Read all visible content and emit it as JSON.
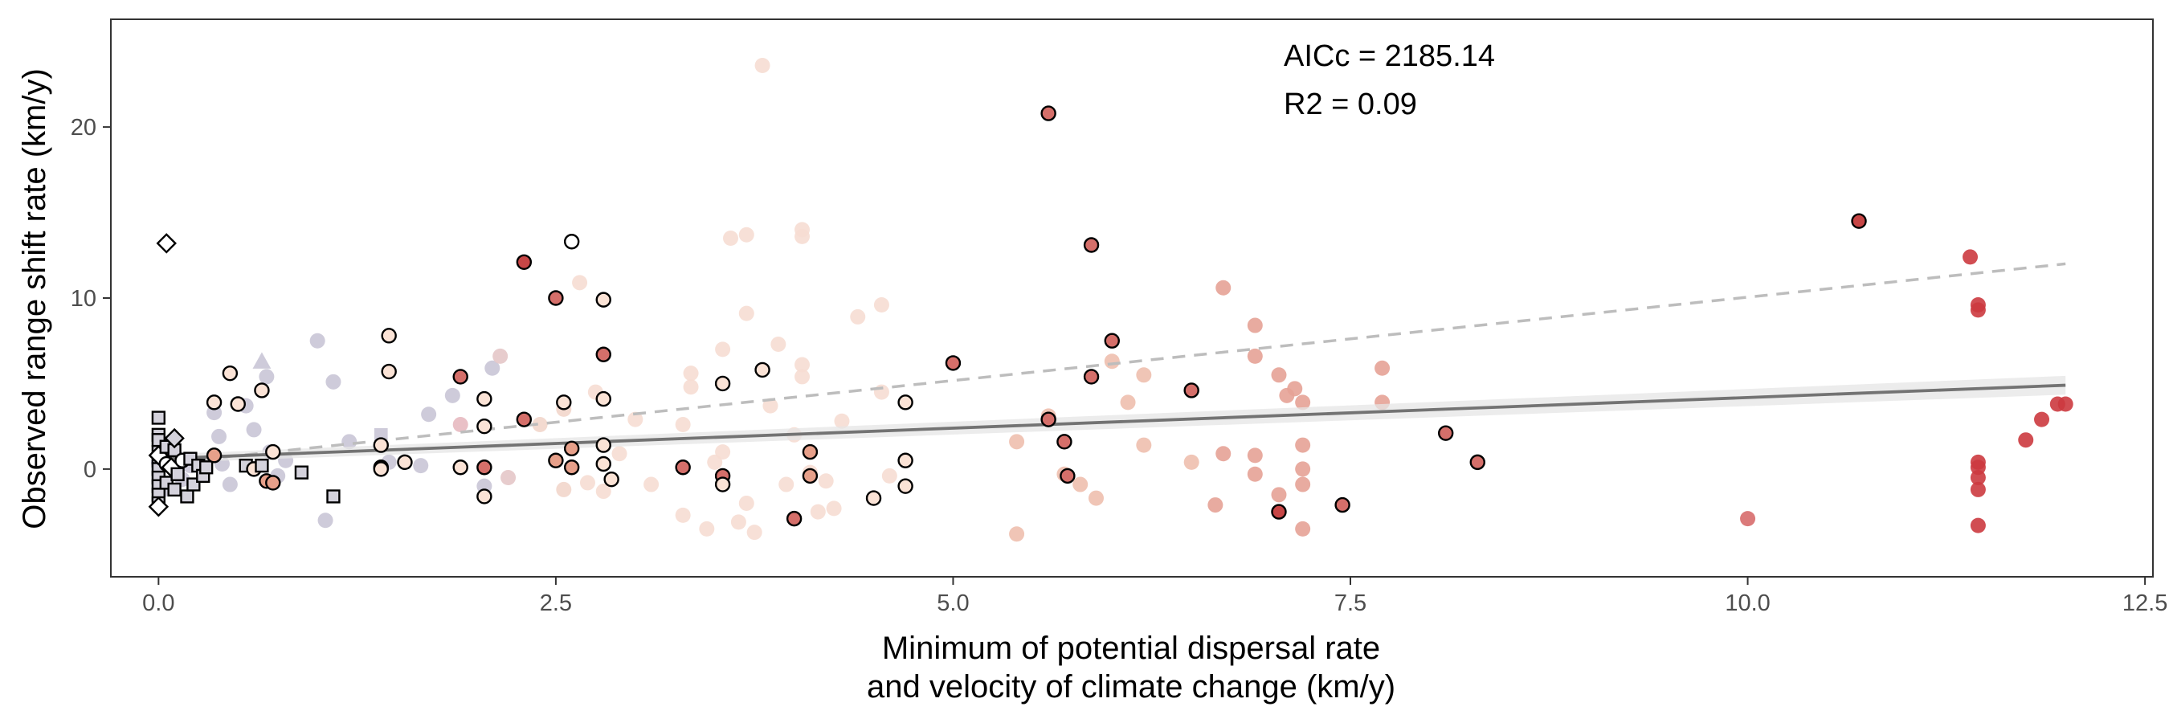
{
  "chart_data": {
    "type": "scatter",
    "xlabel_lines": [
      "Minimum of potential dispersal rate",
      "and velocity of climate change (km/y)"
    ],
    "ylabel": "Observed range shift rate (km/y)",
    "xlim": [
      -0.3,
      12.55
    ],
    "ylim": [
      -6.3,
      26.3
    ],
    "x_ticks": [
      0,
      2.5,
      5,
      7.5,
      10,
      12.5
    ],
    "x_tick_labels": [
      "0.0",
      "2.5",
      "5.0",
      "7.5",
      "10.0",
      "12.5"
    ],
    "y_ticks": [
      0,
      10,
      20
    ],
    "y_tick_labels": [
      "0",
      "10",
      "20"
    ],
    "grid": false,
    "annotations": {
      "aicc": "AICc = 2185.14",
      "r2": "R2 = 0.09"
    },
    "colors": {
      "outline": "#000000",
      "faded_marker": "#c9c5d6",
      "solid_fit": "#737373",
      "dashed_fit": "#bdbdbd",
      "ribbon": "#e6e6e6"
    },
    "fits": [
      {
        "style": "solid",
        "x": [
          0,
          12
        ],
        "y": [
          0.6,
          4.9
        ],
        "ci_halfwidth": [
          0.25,
          0.55
        ]
      },
      {
        "style": "dashed",
        "x": [
          0,
          12
        ],
        "y": [
          0.3,
          12.0
        ]
      }
    ],
    "faded_points": [
      [
        0.0,
        0.4,
        "#c9c5d6",
        "circle"
      ],
      [
        0.03,
        -1.2,
        "#c9c5d6",
        "circle"
      ],
      [
        0.05,
        1.5,
        "#c9c5d6",
        "circle"
      ],
      [
        0.1,
        0.9,
        "#c9c5d6",
        "circle"
      ],
      [
        0.15,
        -0.6,
        "#c9c5d6",
        "circle"
      ],
      [
        0.2,
        0.2,
        "#c9c5d6",
        "circle"
      ],
      [
        0.35,
        3.3,
        "#c9c5d6",
        "circle"
      ],
      [
        0.38,
        1.9,
        "#c9c5d6",
        "circle"
      ],
      [
        0.4,
        0.3,
        "#c9c5d6",
        "circle"
      ],
      [
        0.45,
        -0.9,
        "#c9c5d6",
        "circle"
      ],
      [
        0.55,
        3.7,
        "#c9c5d6",
        "circle"
      ],
      [
        0.6,
        2.3,
        "#c9c5d6",
        "circle"
      ],
      [
        0.65,
        6.3,
        "#c9c5d6",
        "triangle"
      ],
      [
        0.68,
        5.4,
        "#c9c5d6",
        "circle"
      ],
      [
        0.7,
        1.0,
        "#c9c5d6",
        "circle"
      ],
      [
        0.75,
        -0.4,
        "#c9c5d6",
        "circle"
      ],
      [
        0.8,
        0.5,
        "#c9c5d6",
        "circle"
      ],
      [
        1.0,
        7.5,
        "#c9c5d6",
        "circle"
      ],
      [
        1.05,
        -3.0,
        "#c9c5d6",
        "circle"
      ],
      [
        1.1,
        5.1,
        "#c9c5d6",
        "circle"
      ],
      [
        1.2,
        1.6,
        "#c9c5d6",
        "circle"
      ],
      [
        1.4,
        2.0,
        "#c9c5d6",
        "square"
      ],
      [
        1.45,
        0.4,
        "#c9c5d6",
        "circle"
      ],
      [
        1.65,
        0.2,
        "#c9c5d6",
        "circle"
      ],
      [
        1.7,
        3.2,
        "#c9c5d6",
        "circle"
      ],
      [
        1.85,
        4.3,
        "#c9c5d6",
        "circle"
      ],
      [
        1.9,
        2.6,
        "#e7b9c0",
        "circle"
      ],
      [
        2.05,
        -1.0,
        "#c9c5d6",
        "circle"
      ],
      [
        2.1,
        5.9,
        "#c9c5d6",
        "circle"
      ],
      [
        2.15,
        6.6,
        "#e4c7c8",
        "circle"
      ],
      [
        2.2,
        -0.5,
        "#e4c7c8",
        "circle"
      ],
      [
        2.4,
        2.6,
        "#f2d6cb",
        "circle"
      ],
      [
        2.55,
        -1.2,
        "#f2d6cb",
        "circle"
      ],
      [
        2.55,
        3.5,
        "#f2d6cb",
        "circle"
      ],
      [
        2.65,
        10.9,
        "#f6ddd3",
        "circle"
      ],
      [
        2.7,
        -0.8,
        "#f6ddd3",
        "circle"
      ],
      [
        2.75,
        4.5,
        "#f6ddd3",
        "circle"
      ],
      [
        2.8,
        -1.3,
        "#f6ddd3",
        "circle"
      ],
      [
        2.9,
        0.9,
        "#f6ddd3",
        "circle"
      ],
      [
        3.0,
        2.9,
        "#f6ddd3",
        "circle"
      ],
      [
        3.1,
        -0.9,
        "#f6ddd3",
        "circle"
      ],
      [
        3.3,
        -2.7,
        "#f6ddd3",
        "circle"
      ],
      [
        3.3,
        2.6,
        "#f6ddd3",
        "circle"
      ],
      [
        3.35,
        4.8,
        "#f6ddd3",
        "circle"
      ],
      [
        3.35,
        5.6,
        "#f6ddd3",
        "circle"
      ],
      [
        3.45,
        -3.5,
        "#f6ddd3",
        "circle"
      ],
      [
        3.5,
        0.4,
        "#f6ddd3",
        "circle"
      ],
      [
        3.55,
        7.0,
        "#f6ddd3",
        "circle"
      ],
      [
        3.55,
        1.0,
        "#f6ddd3",
        "circle"
      ],
      [
        3.6,
        13.5,
        "#f6ddd3",
        "circle"
      ],
      [
        3.65,
        -3.1,
        "#f6ddd3",
        "circle"
      ],
      [
        3.7,
        13.7,
        "#f6ddd3",
        "circle"
      ],
      [
        3.7,
        9.1,
        "#f6ddd3",
        "circle"
      ],
      [
        3.7,
        -2.0,
        "#f6ddd3",
        "circle"
      ],
      [
        3.75,
        -3.7,
        "#f6ddd3",
        "circle"
      ],
      [
        3.8,
        23.6,
        "#f6ddd3",
        "circle"
      ],
      [
        3.85,
        3.7,
        "#f6ddd3",
        "circle"
      ],
      [
        3.9,
        7.3,
        "#f6ddd3",
        "circle"
      ],
      [
        3.95,
        -0.9,
        "#f6ddd3",
        "circle"
      ],
      [
        4.0,
        2.0,
        "#f6ddd3",
        "circle"
      ],
      [
        4.05,
        13.6,
        "#f6ddd3",
        "circle"
      ],
      [
        4.05,
        14.0,
        "#f6ddd3",
        "circle"
      ],
      [
        4.05,
        6.1,
        "#f6ddd3",
        "circle"
      ],
      [
        4.05,
        5.4,
        "#f6ddd3",
        "circle"
      ],
      [
        4.1,
        -0.2,
        "#f6ddd3",
        "circle"
      ],
      [
        4.15,
        -2.5,
        "#f6ddd3",
        "circle"
      ],
      [
        4.2,
        -0.7,
        "#f6ddd3",
        "circle"
      ],
      [
        4.25,
        -2.3,
        "#f6ddd3",
        "circle"
      ],
      [
        4.3,
        2.8,
        "#f6ddd3",
        "circle"
      ],
      [
        4.4,
        8.9,
        "#f6ddd3",
        "circle"
      ],
      [
        4.55,
        9.6,
        "#f6ddd3",
        "circle"
      ],
      [
        4.55,
        4.5,
        "#f6ddd3",
        "circle"
      ],
      [
        4.6,
        -0.4,
        "#f6ddd3",
        "circle"
      ],
      [
        5.4,
        1.6,
        "#eebfae",
        "circle"
      ],
      [
        5.4,
        -3.8,
        "#eebfae",
        "circle"
      ],
      [
        5.6,
        3.1,
        "#eebfae",
        "circle"
      ],
      [
        5.7,
        -0.3,
        "#eebfae",
        "circle"
      ],
      [
        5.8,
        -0.9,
        "#eebfae",
        "circle"
      ],
      [
        5.9,
        -1.7,
        "#eebfae",
        "circle"
      ],
      [
        6.0,
        6.3,
        "#eebfae",
        "circle"
      ],
      [
        6.1,
        3.9,
        "#eebfae",
        "circle"
      ],
      [
        6.2,
        5.5,
        "#eebfae",
        "circle"
      ],
      [
        6.2,
        1.4,
        "#eebfae",
        "circle"
      ],
      [
        6.5,
        0.4,
        "#eebfae",
        "circle"
      ],
      [
        6.65,
        -2.1,
        "#e6a296",
        "circle"
      ],
      [
        6.7,
        10.6,
        "#e6a296",
        "circle"
      ],
      [
        6.7,
        0.9,
        "#e6a296",
        "circle"
      ],
      [
        6.9,
        8.4,
        "#e6a296",
        "circle"
      ],
      [
        6.9,
        6.6,
        "#e6a296",
        "circle"
      ],
      [
        6.9,
        0.8,
        "#e6a296",
        "circle"
      ],
      [
        6.9,
        -0.3,
        "#e6a296",
        "circle"
      ],
      [
        7.05,
        5.5,
        "#e6a296",
        "circle"
      ],
      [
        7.05,
        -1.5,
        "#e6a296",
        "circle"
      ],
      [
        7.1,
        4.3,
        "#e6a296",
        "circle"
      ],
      [
        7.15,
        4.7,
        "#e6a296",
        "circle"
      ],
      [
        7.2,
        3.9,
        "#e6a296",
        "circle"
      ],
      [
        7.2,
        1.4,
        "#e6a296",
        "circle"
      ],
      [
        7.2,
        0.0,
        "#e6a296",
        "circle"
      ],
      [
        7.2,
        -0.9,
        "#e6a296",
        "circle"
      ],
      [
        7.2,
        -3.5,
        "#e6a296",
        "circle"
      ],
      [
        7.7,
        5.9,
        "#e6a296",
        "circle"
      ],
      [
        7.7,
        3.9,
        "#e6a296",
        "circle"
      ],
      [
        10.0,
        -2.9,
        "#d76b6b",
        "circle"
      ],
      [
        11.4,
        12.4,
        "#cc3a3f",
        "circle"
      ],
      [
        11.45,
        9.3,
        "#cc3a3f",
        "circle"
      ],
      [
        11.45,
        9.6,
        "#cc3a3f",
        "circle"
      ],
      [
        11.45,
        0.4,
        "#cc3a3f",
        "circle"
      ],
      [
        11.45,
        -0.5,
        "#cc3a3f",
        "circle"
      ],
      [
        11.45,
        0.1,
        "#cc3a3f",
        "circle"
      ],
      [
        11.45,
        -1.2,
        "#cc3a3f",
        "circle"
      ],
      [
        11.45,
        -3.3,
        "#cc3a3f",
        "circle"
      ],
      [
        11.75,
        1.7,
        "#cc3a3f",
        "circle"
      ],
      [
        11.85,
        2.9,
        "#cc3a3f",
        "circle"
      ],
      [
        11.95,
        3.8,
        "#cc3a3f",
        "circle"
      ],
      [
        12.0,
        3.8,
        "#cc3a3f",
        "circle"
      ]
    ],
    "outlined_points": [
      [
        0.0,
        3.0,
        "#d4d2dc",
        "square"
      ],
      [
        0.0,
        2.0,
        "#d4d2dc",
        "square"
      ],
      [
        0.0,
        1.7,
        "#d4d2dc",
        "square"
      ],
      [
        0.0,
        1.0,
        "#d4d2dc",
        "square"
      ],
      [
        0.0,
        0.5,
        "#d4d2dc",
        "square"
      ],
      [
        0.0,
        0.0,
        "#d4d2dc",
        "square"
      ],
      [
        0.0,
        -0.5,
        "#d4d2dc",
        "square"
      ],
      [
        0.0,
        -1.0,
        "#d4d2dc",
        "square"
      ],
      [
        0.0,
        -1.5,
        "#d4d2dc",
        "square"
      ],
      [
        0.0,
        -2.0,
        "#d4d2dc",
        "square"
      ],
      [
        0.0,
        -2.2,
        "#ffffff",
        "diamond"
      ],
      [
        0.0,
        0.8,
        "#ffffff",
        "diamond"
      ],
      [
        0.05,
        1.3,
        "#d4d2dc",
        "square"
      ],
      [
        0.05,
        -0.8,
        "#d4d2dc",
        "square"
      ],
      [
        0.05,
        0.3,
        "#ffffff",
        "circle"
      ],
      [
        0.08,
        0.1,
        "#ffffff",
        "diamond"
      ],
      [
        0.1,
        1.1,
        "#d4d2dc",
        "square"
      ],
      [
        0.1,
        -1.2,
        "#d4d2dc",
        "square"
      ],
      [
        0.12,
        -0.3,
        "#d4d2dc",
        "square"
      ],
      [
        0.15,
        0.5,
        "#ffffff",
        "circle"
      ],
      [
        0.18,
        -1.6,
        "#d4d2dc",
        "square"
      ],
      [
        0.2,
        0.6,
        "#d4d2dc",
        "square"
      ],
      [
        0.22,
        -0.9,
        "#d4d2dc",
        "square"
      ],
      [
        0.25,
        0.2,
        "#d4d2dc",
        "square"
      ],
      [
        0.28,
        -0.4,
        "#d4d2dc",
        "square"
      ],
      [
        0.3,
        0.1,
        "#d4d2dc",
        "square"
      ],
      [
        0.05,
        13.2,
        "#ffffff",
        "diamond"
      ],
      [
        0.1,
        1.8,
        "#d4d2dc",
        "diamond"
      ],
      [
        0.35,
        0.8,
        "#e7a08a",
        "circle"
      ],
      [
        0.35,
        3.9,
        "#fbe3d6",
        "circle"
      ],
      [
        0.45,
        5.6,
        "#fbe3d6",
        "circle"
      ],
      [
        0.5,
        3.8,
        "#fbe3d6",
        "circle"
      ],
      [
        0.55,
        0.2,
        "#d4d2dc",
        "square"
      ],
      [
        0.6,
        0.0,
        "#fbe3d6",
        "circle"
      ],
      [
        0.65,
        0.2,
        "#d4d2dc",
        "square"
      ],
      [
        0.65,
        4.6,
        "#fbe3d6",
        "circle"
      ],
      [
        0.68,
        -0.7,
        "#e7a08a",
        "circle"
      ],
      [
        0.72,
        1.0,
        "#fbe3d6",
        "circle"
      ],
      [
        0.72,
        -0.8,
        "#e7a08a",
        "circle"
      ],
      [
        0.9,
        -0.2,
        "#d4d2dc",
        "square"
      ],
      [
        1.1,
        -1.6,
        "#d4d2dc",
        "square"
      ],
      [
        1.4,
        1.4,
        "#fbe3d6",
        "circle"
      ],
      [
        1.4,
        0.1,
        "#e7a08a",
        "circle"
      ],
      [
        1.4,
        0.0,
        "#fbe3d6",
        "circle"
      ],
      [
        1.45,
        7.8,
        "#fbe3d6",
        "circle"
      ],
      [
        1.45,
        5.7,
        "#fbe3d6",
        "circle"
      ],
      [
        1.55,
        0.4,
        "#fbe3d6",
        "circle"
      ],
      [
        1.9,
        5.4,
        "#d56f6a",
        "circle"
      ],
      [
        1.9,
        0.1,
        "#fbe3d6",
        "circle"
      ],
      [
        2.05,
        4.1,
        "#fbe3d6",
        "circle"
      ],
      [
        2.05,
        2.5,
        "#fbe3d6",
        "circle"
      ],
      [
        2.05,
        0.1,
        "#d56f6a",
        "circle"
      ],
      [
        2.05,
        -1.6,
        "#fbe3d6",
        "circle"
      ],
      [
        2.3,
        12.1,
        "#c74646",
        "circle"
      ],
      [
        2.3,
        2.9,
        "#d56f6a",
        "circle"
      ],
      [
        2.5,
        10.0,
        "#d56f6a",
        "circle"
      ],
      [
        2.5,
        0.5,
        "#e7a08a",
        "circle"
      ],
      [
        2.55,
        3.9,
        "#fbe3d6",
        "circle"
      ],
      [
        2.6,
        13.3,
        "#ffffff",
        "circle"
      ],
      [
        2.6,
        1.2,
        "#e7a08a",
        "circle"
      ],
      [
        2.6,
        0.1,
        "#e7a08a",
        "circle"
      ],
      [
        2.8,
        9.9,
        "#fbe3d6",
        "circle"
      ],
      [
        2.8,
        6.7,
        "#d56f6a",
        "circle"
      ],
      [
        2.8,
        4.1,
        "#fbe3d6",
        "circle"
      ],
      [
        2.8,
        1.4,
        "#fbe3d6",
        "circle"
      ],
      [
        2.8,
        0.3,
        "#fbe3d6",
        "circle"
      ],
      [
        2.85,
        -0.6,
        "#fbe3d6",
        "circle"
      ],
      [
        3.3,
        0.1,
        "#d56f6a",
        "circle"
      ],
      [
        3.55,
        5.0,
        "#fbe3d6",
        "circle"
      ],
      [
        3.55,
        -0.4,
        "#d56f6a",
        "circle"
      ],
      [
        3.55,
        -0.9,
        "#fbe3d6",
        "circle"
      ],
      [
        3.8,
        5.8,
        "#fbe3d6",
        "circle"
      ],
      [
        4.0,
        -2.9,
        "#d56f6a",
        "circle"
      ],
      [
        4.1,
        1.0,
        "#e7a08a",
        "circle"
      ],
      [
        4.1,
        -0.4,
        "#e7a08a",
        "circle"
      ],
      [
        4.5,
        -1.7,
        "#fbe3d6",
        "circle"
      ],
      [
        4.7,
        3.9,
        "#fbe3d6",
        "circle"
      ],
      [
        4.7,
        0.5,
        "#fbe3d6",
        "circle"
      ],
      [
        4.7,
        -1.0,
        "#fbe3d6",
        "circle"
      ],
      [
        5.0,
        6.2,
        "#d56f6a",
        "circle"
      ],
      [
        5.6,
        20.8,
        "#d56f6a",
        "circle"
      ],
      [
        5.6,
        2.9,
        "#d56f6a",
        "circle"
      ],
      [
        5.7,
        1.6,
        "#d56f6a",
        "circle"
      ],
      [
        5.72,
        -0.4,
        "#d56f6a",
        "circle"
      ],
      [
        5.87,
        13.1,
        "#d56f6a",
        "circle"
      ],
      [
        5.87,
        5.4,
        "#d56f6a",
        "circle"
      ],
      [
        6.0,
        7.5,
        "#d56f6a",
        "circle"
      ],
      [
        6.5,
        4.6,
        "#d56f6a",
        "circle"
      ],
      [
        7.05,
        -2.5,
        "#c74646",
        "circle"
      ],
      [
        7.45,
        -2.1,
        "#d56f6a",
        "circle"
      ],
      [
        8.1,
        2.1,
        "#d56f6a",
        "circle"
      ],
      [
        8.3,
        0.4,
        "#d56f6a",
        "circle"
      ],
      [
        10.7,
        14.5,
        "#c74646",
        "circle"
      ]
    ]
  }
}
